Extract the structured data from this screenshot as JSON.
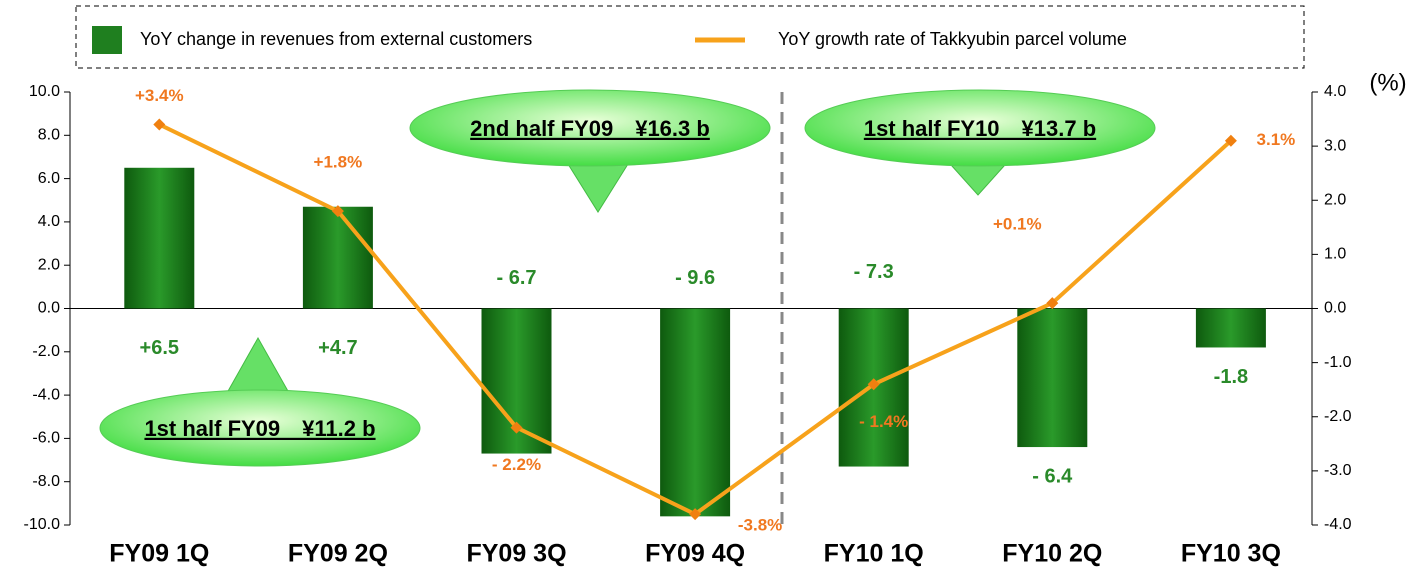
{
  "chart_data": {
    "type": "bar_line",
    "categories": [
      "FY09 1Q",
      "FY09 2Q",
      "FY09 3Q",
      "FY09 4Q",
      "FY10 1Q",
      "FY10 2Q",
      "FY10 3Q"
    ],
    "series": [
      {
        "name": "YoY change in revenues from external customers",
        "color": "#1f7f1f",
        "values": [
          6.5,
          4.7,
          -6.7,
          -9.6,
          -7.3,
          -6.4,
          -1.8
        ],
        "value_labels": [
          "+6.5",
          "+4.7",
          "- 6.7",
          "- 9.6",
          "- 7.3",
          "- 6.4",
          "-1.8"
        ]
      },
      {
        "name": "YoY growth rate of Takkyubin parcel volume",
        "color": "#f7a21b",
        "axis": "y2",
        "values": [
          3.4,
          1.8,
          -2.2,
          -3.8,
          -1.4,
          0.1,
          3.1
        ],
        "value_labels": [
          "+3.4%",
          "+1.8%",
          "- 2.2%",
          "-3.8%",
          "- 1.4%",
          "+0.1%",
          "3.1%"
        ]
      }
    ],
    "ylim": [
      -10,
      10
    ],
    "yticks": [
      {
        "value": 10,
        "label": "10.0"
      },
      {
        "value": 8,
        "label": "8.0"
      },
      {
        "value": 6,
        "label": "6.0"
      },
      {
        "value": 4,
        "label": "4.0"
      },
      {
        "value": 2,
        "label": "2.0"
      },
      {
        "value": 0,
        "label": "0.0"
      },
      {
        "value": -2,
        "label": "-2.0"
      },
      {
        "value": -4,
        "label": "-4.0"
      },
      {
        "value": -6,
        "label": "-6.0"
      },
      {
        "value": -8,
        "label": "-8.0"
      },
      {
        "value": -10,
        "label": "-10.0"
      }
    ],
    "y2lim": [
      -4,
      4
    ],
    "y2ticks": [
      {
        "value": 4,
        "label": "4.0"
      },
      {
        "value": 3,
        "label": "3.0"
      },
      {
        "value": 2,
        "label": "2.0"
      },
      {
        "value": 1,
        "label": "1.0"
      },
      {
        "value": 0,
        "label": "0.0"
      },
      {
        "value": -1,
        "label": "-1.0"
      },
      {
        "value": -2,
        "label": "-2.0"
      },
      {
        "value": -3,
        "label": "-3.0"
      },
      {
        "value": -4,
        "label": "-4.0"
      }
    ],
    "y2label": "(%)",
    "annotations": [
      "1st half FY09　¥11.2 b",
      "2nd half FY09　¥16.3 b",
      "1st half FY10　¥13.7 b"
    ]
  }
}
